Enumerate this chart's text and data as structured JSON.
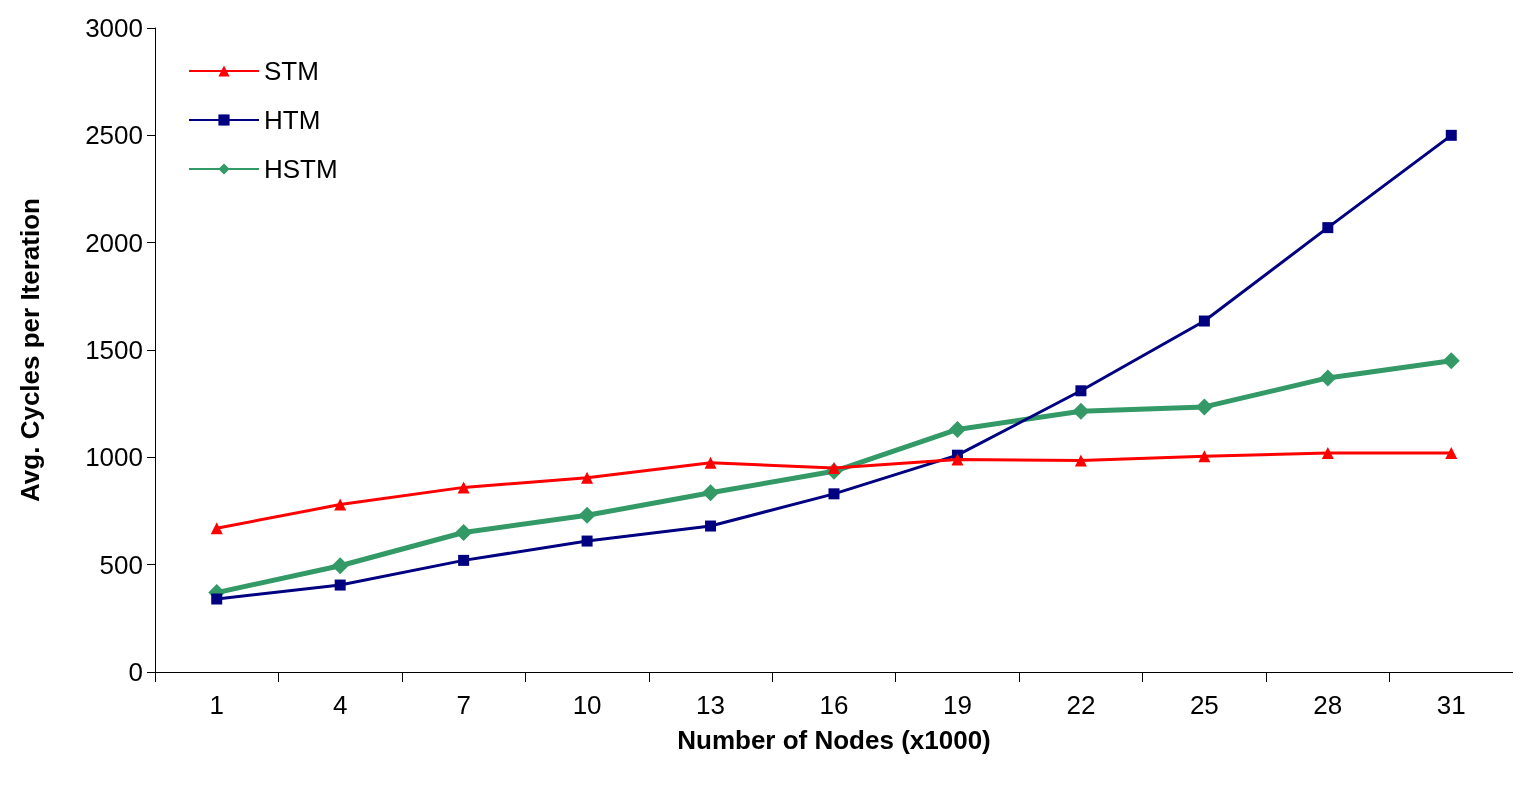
{
  "chart_data": {
    "type": "line",
    "xlabel": "Number of Nodes (x1000)",
    "ylabel": "Avg. Cycles per Iteration",
    "categories": [
      "1",
      "4",
      "7",
      "10",
      "13",
      "16",
      "19",
      "22",
      "25",
      "28",
      "31"
    ],
    "ylim": [
      0,
      3000
    ],
    "yticks": [
      0,
      500,
      1000,
      1500,
      2000,
      2500,
      3000
    ],
    "grid": false,
    "legend": "top left",
    "series": [
      {
        "name": "STM",
        "color": "#ff0000",
        "marker": "triangle",
        "values": [
          670,
          780,
          860,
          905,
          975,
          950,
          990,
          985,
          1005,
          1020,
          1020
        ]
      },
      {
        "name": "HTM",
        "color": "#000080",
        "marker": "square",
        "values": [
          340,
          405,
          520,
          610,
          680,
          830,
          1010,
          1310,
          1635,
          2070,
          2500
        ]
      },
      {
        "name": "HSTM",
        "color": "#339966",
        "marker": "diamond",
        "values": [
          370,
          495,
          650,
          730,
          835,
          935,
          1130,
          1215,
          1235,
          1370,
          1450
        ]
      }
    ]
  }
}
